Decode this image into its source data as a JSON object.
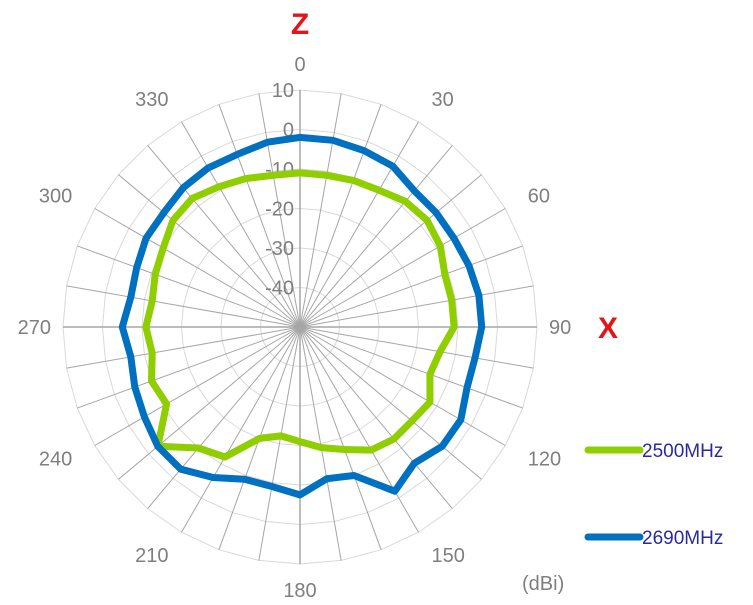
{
  "chart_data": {
    "type": "radar",
    "angles": [
      0,
      10,
      20,
      30,
      40,
      50,
      60,
      70,
      80,
      90,
      100,
      110,
      120,
      130,
      140,
      150,
      160,
      170,
      180,
      190,
      200,
      210,
      220,
      230,
      240,
      250,
      260,
      270,
      280,
      290,
      300,
      310,
      320,
      330,
      340,
      350
    ],
    "angle_labels": [
      "0",
      "30",
      "60",
      "90",
      "120",
      "150",
      "180",
      "210",
      "240",
      "270",
      "300",
      "330"
    ],
    "radial_ticks": [
      "10",
      "0",
      "-10",
      "-20",
      "-30",
      "-40"
    ],
    "rlim": [
      -50,
      10
    ],
    "axis_names": {
      "top": "Z",
      "right": "X"
    },
    "unit": "(dBi)",
    "series": [
      {
        "name": "2500MHz",
        "color": "#8fce00",
        "values": [
          -11,
          -11,
          -10.5,
          -10,
          -8.5,
          -8,
          -9,
          -11,
          -11,
          -11,
          -14,
          -15,
          -12,
          -13,
          -13,
          -14,
          -17,
          -19,
          -21,
          -22,
          -20,
          -12,
          -10,
          -3,
          -11,
          -10,
          -12,
          -11,
          -12,
          -11,
          -10,
          -8,
          -7.5,
          -9,
          -10,
          -11
        ]
      },
      {
        "name": "2690MHz",
        "color": "#0070c0",
        "values": [
          -2,
          -2,
          -2.5,
          -3,
          -5,
          -5,
          -5,
          -4.5,
          -4,
          -4,
          -5,
          -5,
          -3,
          -3,
          -5,
          -2,
          -10,
          -11,
          -7.5,
          -9,
          -9,
          -6,
          -3,
          -3,
          -4.5,
          -5.5,
          -6.5,
          -5,
          -6.5,
          -6,
          -5,
          -5,
          -4,
          -3.5,
          -3.5,
          -2.5
        ]
      }
    ],
    "legend_position": "right"
  }
}
